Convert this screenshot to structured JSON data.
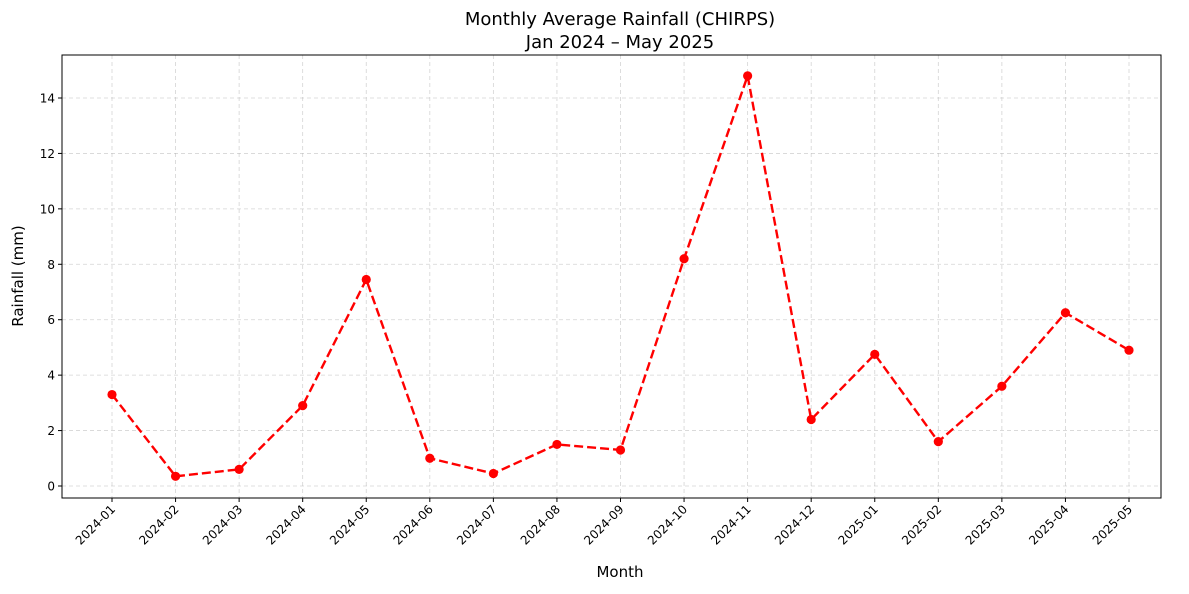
{
  "chart_data": {
    "type": "line",
    "title": "Monthly Average Rainfall (CHIRPS)",
    "subtitle": "Jan 2024 – May 2025",
    "xlabel": "Month",
    "ylabel": "Rainfall (mm)",
    "categories": [
      "2024-01",
      "2024-02",
      "2024-03",
      "2024-04",
      "2024-05",
      "2024-06",
      "2024-07",
      "2024-08",
      "2024-09",
      "2024-10",
      "2024-11",
      "2024-12",
      "2025-01",
      "2025-02",
      "2025-03",
      "2025-04",
      "2025-05"
    ],
    "series": [
      {
        "values": [
          3.3,
          0.35,
          0.6,
          2.9,
          7.45,
          1.0,
          0.45,
          1.5,
          1.3,
          8.2,
          14.8,
          2.4,
          4.75,
          1.6,
          3.6,
          6.25,
          4.9
        ],
        "color": "#ff0000",
        "line_style": "dashed",
        "marker": "circle"
      }
    ],
    "ylim": [
      -0.4,
      15.6
    ],
    "yticks": [
      0,
      2,
      4,
      6,
      8,
      10,
      12,
      14
    ],
    "grid": true,
    "legend": "none"
  }
}
